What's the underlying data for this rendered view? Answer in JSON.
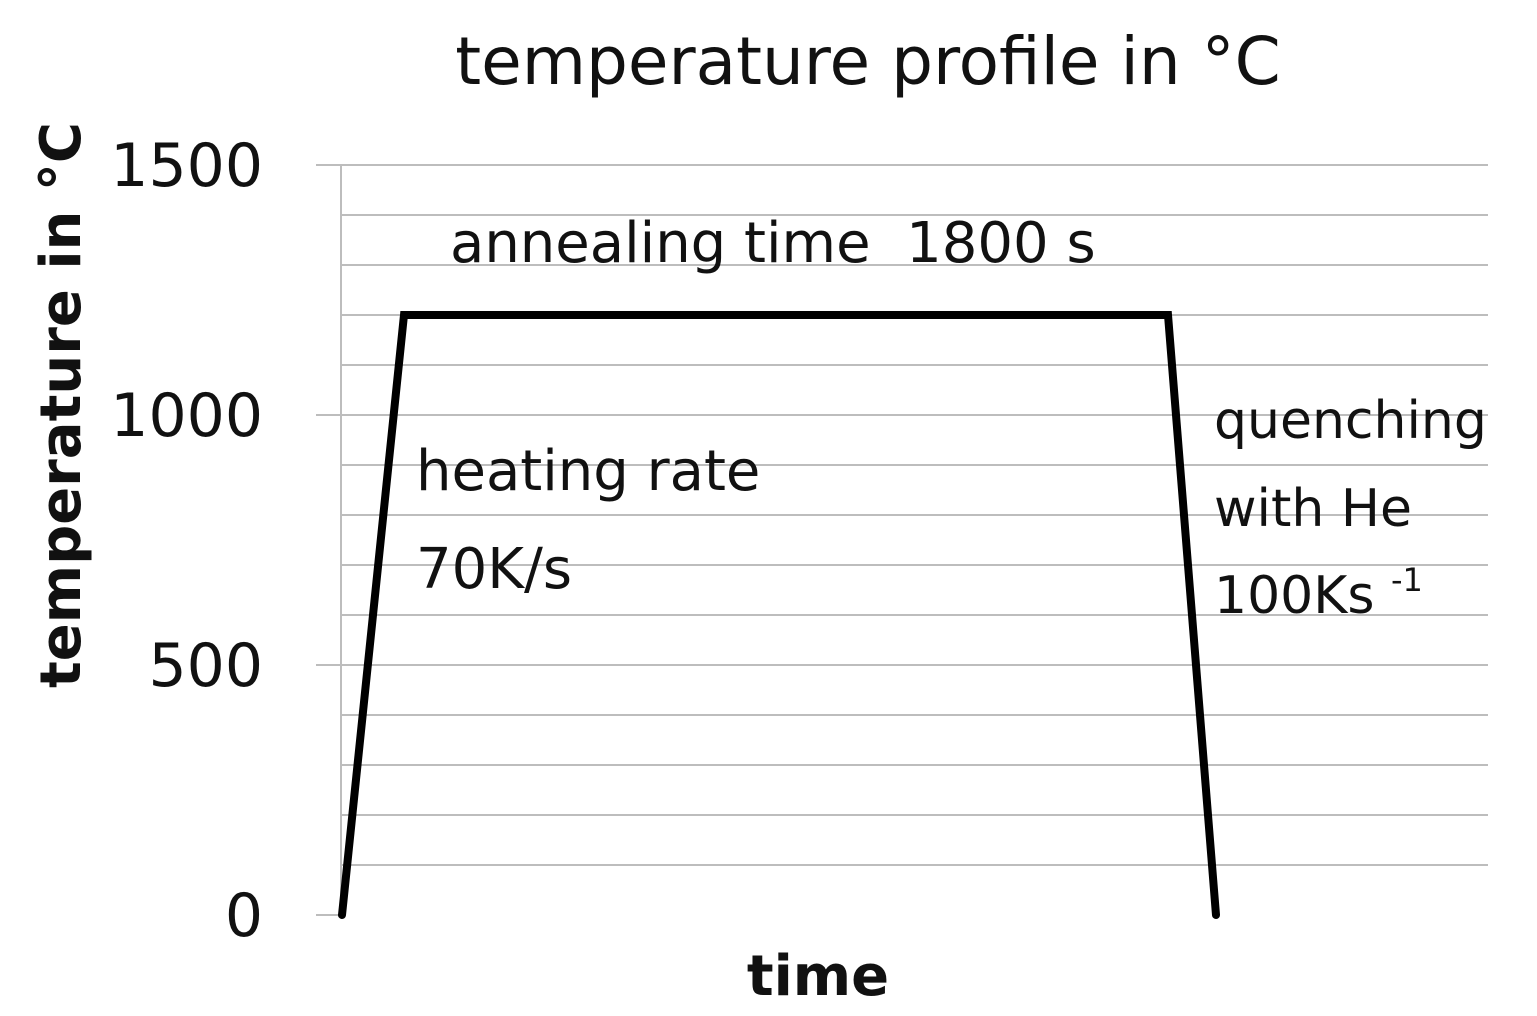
{
  "chart_data": {
    "type": "line",
    "title": "temperature profile in °C",
    "xlabel": "time",
    "ylabel": "temperature in °C",
    "ylim": [
      0,
      1500
    ],
    "y_ticks": [
      "0",
      "500",
      "1000",
      "1500"
    ],
    "y_tick_values": [
      0,
      500,
      1000,
      1500
    ],
    "y_minor_step": 100,
    "grid": true,
    "x_tick_labels_shown": false,
    "series": [
      {
        "points_y": [
          0,
          1200,
          1200,
          0
        ],
        "phases": [
          "heating",
          "annealing",
          "quenching"
        ]
      }
    ],
    "annotations": {
      "annealing": "annealing time  1800 s",
      "heating_line1": "heating rate",
      "heating_line2": "70K/s",
      "quench_line1": "quenching",
      "quench_line2": "with He",
      "quench_line3_base": "100Ks",
      "quench_line3_sup": "-1"
    }
  }
}
